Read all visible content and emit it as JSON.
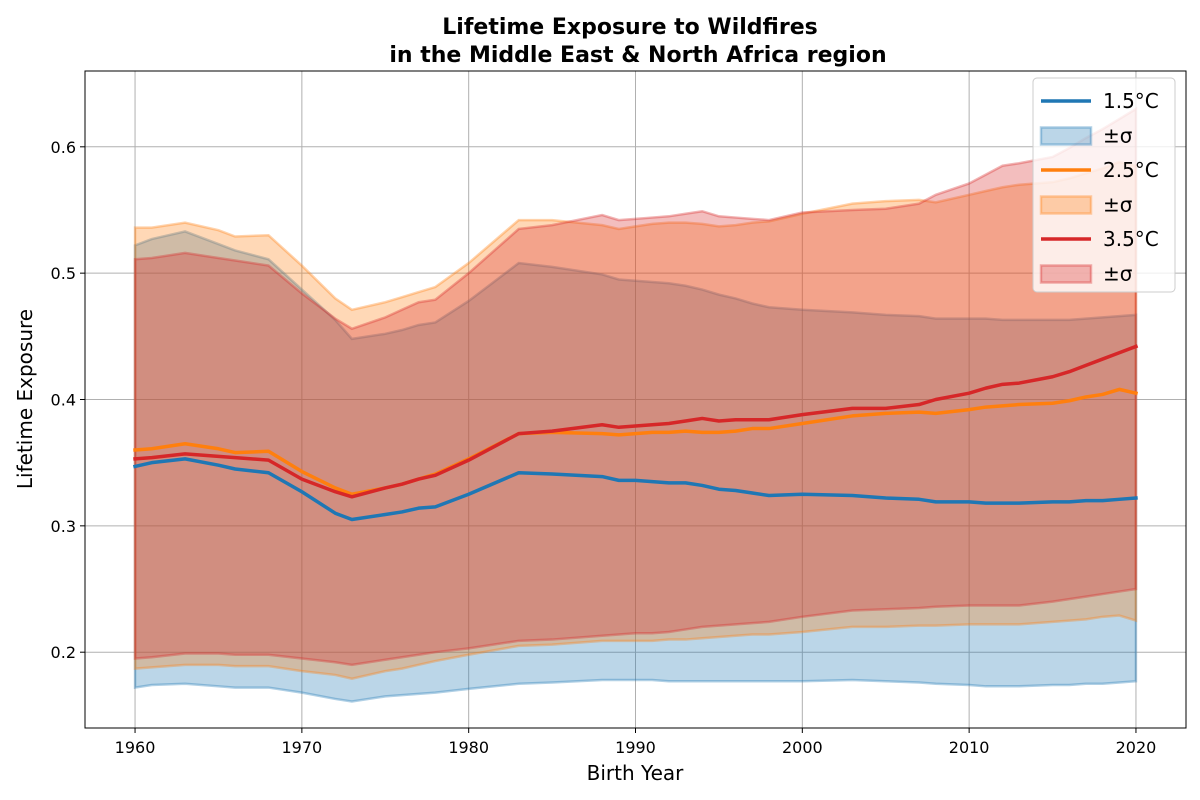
{
  "chart_data": {
    "type": "line",
    "title_lines": [
      "Lifetime Exposure to Wildfires",
      "in the Middle East & North Africa region"
    ],
    "xlabel": "Birth Year",
    "ylabel": "Lifetime Exposure",
    "xlim": [
      1957,
      2023
    ],
    "ylim": [
      0.14,
      0.66
    ],
    "xticks": [
      1960,
      1970,
      1980,
      1990,
      2000,
      2010,
      2020
    ],
    "yticks": [
      0.2,
      0.3,
      0.4,
      0.5,
      0.6
    ],
    "ytick_labels": [
      "0.2",
      "0.3",
      "0.4",
      "0.5",
      "0.6"
    ],
    "grid": true,
    "legend_position": "top-right",
    "x": [
      1960,
      1961,
      1963,
      1965,
      1966,
      1968,
      1970,
      1972,
      1973,
      1975,
      1976,
      1977,
      1978,
      1980,
      1983,
      1985,
      1988,
      1989,
      1990,
      1991,
      1992,
      1993,
      1994,
      1995,
      1996,
      1997,
      1998,
      2000,
      2003,
      2005,
      2007,
      2008,
      2010,
      2011,
      2012,
      2013,
      2015,
      2016,
      2017,
      2018,
      2019,
      2020
    ],
    "series": [
      {
        "name": "1.5°C",
        "band_label": "±σ",
        "color": "#1f77b4",
        "values": [
          0.347,
          0.35,
          0.353,
          0.348,
          0.345,
          0.342,
          0.327,
          0.31,
          0.305,
          0.309,
          0.311,
          0.314,
          0.315,
          0.325,
          0.342,
          0.341,
          0.339,
          0.336,
          0.336,
          0.335,
          0.334,
          0.334,
          0.332,
          0.329,
          0.328,
          0.326,
          0.324,
          0.325,
          0.324,
          0.322,
          0.321,
          0.319,
          0.319,
          0.318,
          0.318,
          0.318,
          0.319,
          0.319,
          0.32,
          0.32,
          0.321,
          0.322
        ],
        "upper": [
          0.522,
          0.527,
          0.533,
          0.523,
          0.518,
          0.511,
          0.487,
          0.463,
          0.448,
          0.452,
          0.455,
          0.459,
          0.461,
          0.478,
          0.508,
          0.505,
          0.499,
          0.495,
          0.494,
          0.493,
          0.492,
          0.49,
          0.487,
          0.483,
          0.48,
          0.476,
          0.473,
          0.471,
          0.469,
          0.467,
          0.466,
          0.464,
          0.464,
          0.464,
          0.463,
          0.463,
          0.463,
          0.463,
          0.464,
          0.465,
          0.466,
          0.467
        ],
        "lower": [
          0.172,
          0.174,
          0.175,
          0.173,
          0.172,
          0.172,
          0.168,
          0.163,
          0.161,
          0.165,
          0.166,
          0.167,
          0.168,
          0.171,
          0.175,
          0.176,
          0.178,
          0.178,
          0.178,
          0.178,
          0.177,
          0.177,
          0.177,
          0.177,
          0.177,
          0.177,
          0.177,
          0.177,
          0.178,
          0.177,
          0.176,
          0.175,
          0.174,
          0.173,
          0.173,
          0.173,
          0.174,
          0.174,
          0.175,
          0.175,
          0.176,
          0.177
        ]
      },
      {
        "name": "2.5°C",
        "band_label": "±σ",
        "color": "#ff7f0e",
        "values": [
          0.36,
          0.361,
          0.365,
          0.361,
          0.358,
          0.359,
          0.343,
          0.33,
          0.325,
          0.33,
          0.333,
          0.337,
          0.341,
          0.353,
          0.373,
          0.374,
          0.373,
          0.372,
          0.373,
          0.374,
          0.374,
          0.375,
          0.374,
          0.374,
          0.375,
          0.377,
          0.377,
          0.381,
          0.387,
          0.389,
          0.39,
          0.389,
          0.392,
          0.394,
          0.395,
          0.396,
          0.397,
          0.399,
          0.402,
          0.404,
          0.408,
          0.405
        ],
        "upper": [
          0.536,
          0.536,
          0.54,
          0.534,
          0.529,
          0.53,
          0.506,
          0.48,
          0.471,
          0.477,
          0.481,
          0.485,
          0.489,
          0.508,
          0.542,
          0.542,
          0.538,
          0.535,
          0.537,
          0.539,
          0.54,
          0.54,
          0.539,
          0.537,
          0.538,
          0.54,
          0.541,
          0.547,
          0.555,
          0.557,
          0.558,
          0.556,
          0.562,
          0.565,
          0.568,
          0.57,
          0.572,
          0.575,
          0.579,
          0.583,
          0.588,
          0.585
        ],
        "lower": [
          0.187,
          0.188,
          0.19,
          0.19,
          0.189,
          0.189,
          0.185,
          0.182,
          0.179,
          0.185,
          0.187,
          0.19,
          0.193,
          0.198,
          0.205,
          0.206,
          0.209,
          0.209,
          0.209,
          0.209,
          0.21,
          0.21,
          0.211,
          0.212,
          0.213,
          0.214,
          0.214,
          0.216,
          0.22,
          0.22,
          0.221,
          0.221,
          0.222,
          0.222,
          0.222,
          0.222,
          0.224,
          0.225,
          0.226,
          0.228,
          0.229,
          0.225
        ]
      },
      {
        "name": "3.5°C",
        "band_label": "±σ",
        "color": "#d62728",
        "values": [
          0.353,
          0.354,
          0.357,
          0.355,
          0.354,
          0.352,
          0.337,
          0.327,
          0.323,
          0.33,
          0.333,
          0.337,
          0.34,
          0.352,
          0.373,
          0.375,
          0.38,
          0.378,
          0.379,
          0.38,
          0.381,
          0.383,
          0.385,
          0.383,
          0.384,
          0.384,
          0.384,
          0.388,
          0.393,
          0.393,
          0.396,
          0.4,
          0.405,
          0.409,
          0.412,
          0.413,
          0.418,
          0.422,
          0.427,
          0.432,
          0.437,
          0.442
        ],
        "upper": [
          0.511,
          0.512,
          0.516,
          0.512,
          0.51,
          0.506,
          0.484,
          0.464,
          0.456,
          0.465,
          0.471,
          0.477,
          0.479,
          0.5,
          0.535,
          0.538,
          0.546,
          0.542,
          0.543,
          0.544,
          0.545,
          0.547,
          0.549,
          0.545,
          0.544,
          0.543,
          0.542,
          0.548,
          0.55,
          0.551,
          0.555,
          0.562,
          0.571,
          0.578,
          0.585,
          0.587,
          0.592,
          0.599,
          0.607,
          0.614,
          0.622,
          0.63
        ],
        "lower": [
          0.195,
          0.196,
          0.199,
          0.199,
          0.198,
          0.198,
          0.195,
          0.192,
          0.19,
          0.194,
          0.196,
          0.198,
          0.2,
          0.203,
          0.209,
          0.21,
          0.213,
          0.214,
          0.215,
          0.215,
          0.216,
          0.218,
          0.22,
          0.221,
          0.222,
          0.223,
          0.224,
          0.228,
          0.233,
          0.234,
          0.235,
          0.236,
          0.237,
          0.237,
          0.237,
          0.237,
          0.24,
          0.242,
          0.244,
          0.246,
          0.248,
          0.25
        ]
      }
    ]
  }
}
